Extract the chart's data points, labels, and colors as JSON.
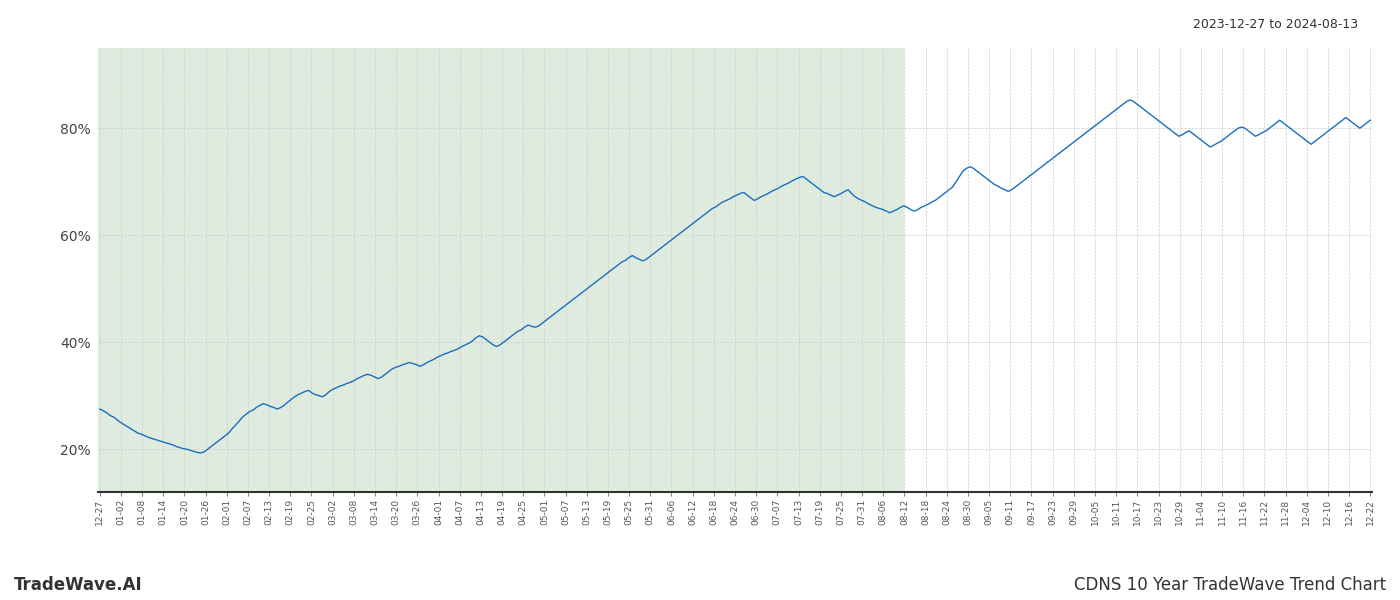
{
  "title_top_right": "2023-12-27 to 2024-08-13",
  "title_bottom_left": "TradeWave.AI",
  "title_bottom_right": "CDNS 10 Year TradeWave Trend Chart",
  "line_color": "#1a6fbd",
  "line_width": 1.0,
  "shaded_color": "#c8dfc8",
  "shaded_alpha": 0.6,
  "background_color": "#ffffff",
  "grid_color": "#cccccc",
  "ylim": [
    12,
    95
  ],
  "yticks": [
    20,
    40,
    60,
    80
  ],
  "x_labels": [
    "12-27",
    "01-02",
    "01-08",
    "01-14",
    "01-20",
    "01-26",
    "02-01",
    "02-07",
    "02-13",
    "02-19",
    "02-25",
    "03-02",
    "03-08",
    "03-14",
    "03-20",
    "03-26",
    "04-01",
    "04-07",
    "04-13",
    "04-19",
    "04-25",
    "05-01",
    "05-07",
    "05-13",
    "05-19",
    "05-25",
    "05-31",
    "06-06",
    "06-12",
    "06-18",
    "06-24",
    "06-30",
    "07-07",
    "07-13",
    "07-19",
    "07-25",
    "07-31",
    "08-06",
    "08-12",
    "08-18",
    "08-24",
    "08-30",
    "09-05",
    "09-11",
    "09-17",
    "09-23",
    "09-29",
    "10-05",
    "10-11",
    "10-17",
    "10-23",
    "10-29",
    "11-04",
    "11-10",
    "11-16",
    "11-22",
    "11-28",
    "12-04",
    "12-10",
    "12-16",
    "12-22"
  ],
  "shaded_end_label": "08-12",
  "y_values": [
    27.5,
    27.2,
    26.8,
    26.3,
    26.0,
    25.5,
    25.0,
    24.6,
    24.2,
    23.8,
    23.4,
    23.0,
    22.8,
    22.5,
    22.2,
    22.0,
    21.8,
    21.6,
    21.4,
    21.2,
    21.0,
    20.8,
    20.5,
    20.3,
    20.1,
    20.0,
    19.8,
    19.6,
    19.4,
    19.3,
    19.5,
    20.0,
    20.5,
    21.0,
    21.5,
    22.0,
    22.5,
    23.0,
    23.8,
    24.5,
    25.2,
    26.0,
    26.5,
    27.0,
    27.3,
    27.8,
    28.2,
    28.5,
    28.3,
    28.0,
    27.8,
    27.5,
    27.8,
    28.2,
    28.8,
    29.3,
    29.8,
    30.2,
    30.5,
    30.8,
    31.0,
    30.5,
    30.2,
    30.0,
    29.8,
    30.2,
    30.8,
    31.2,
    31.5,
    31.8,
    32.0,
    32.3,
    32.5,
    32.8,
    33.2,
    33.5,
    33.8,
    34.0,
    33.8,
    33.5,
    33.2,
    33.5,
    34.0,
    34.5,
    35.0,
    35.3,
    35.5,
    35.8,
    36.0,
    36.2,
    36.0,
    35.8,
    35.5,
    35.8,
    36.2,
    36.5,
    36.8,
    37.2,
    37.5,
    37.8,
    38.0,
    38.3,
    38.5,
    38.8,
    39.2,
    39.5,
    39.8,
    40.2,
    40.8,
    41.2,
    41.0,
    40.5,
    40.0,
    39.5,
    39.2,
    39.5,
    40.0,
    40.5,
    41.0,
    41.5,
    42.0,
    42.3,
    42.8,
    43.2,
    43.0,
    42.8,
    43.0,
    43.5,
    44.0,
    44.5,
    45.0,
    45.5,
    46.0,
    46.5,
    47.0,
    47.5,
    48.0,
    48.5,
    49.0,
    49.5,
    50.0,
    50.5,
    51.0,
    51.5,
    52.0,
    52.5,
    53.0,
    53.5,
    54.0,
    54.5,
    55.0,
    55.3,
    55.8,
    56.2,
    55.8,
    55.5,
    55.2,
    55.5,
    56.0,
    56.5,
    57.0,
    57.5,
    58.0,
    58.5,
    59.0,
    59.5,
    60.0,
    60.5,
    61.0,
    61.5,
    62.0,
    62.5,
    63.0,
    63.5,
    64.0,
    64.5,
    65.0,
    65.3,
    65.8,
    66.2,
    66.5,
    66.8,
    67.2,
    67.5,
    67.8,
    68.0,
    67.5,
    67.0,
    66.5,
    66.8,
    67.2,
    67.5,
    67.8,
    68.2,
    68.5,
    68.8,
    69.2,
    69.5,
    69.8,
    70.2,
    70.5,
    70.8,
    71.0,
    70.5,
    70.0,
    69.5,
    69.0,
    68.5,
    68.0,
    67.8,
    67.5,
    67.2,
    67.5,
    67.8,
    68.2,
    68.5,
    67.8,
    67.2,
    66.8,
    66.5,
    66.2,
    65.8,
    65.5,
    65.2,
    65.0,
    64.8,
    64.5,
    64.2,
    64.5,
    64.8,
    65.2,
    65.5,
    65.2,
    64.8,
    64.5,
    64.8,
    65.2,
    65.5,
    65.8,
    66.2,
    66.5,
    67.0,
    67.5,
    68.0,
    68.5,
    69.0,
    70.0,
    71.0,
    72.0,
    72.5,
    72.8,
    72.5,
    72.0,
    71.5,
    71.0,
    70.5,
    70.0,
    69.5,
    69.2,
    68.8,
    68.5,
    68.2,
    68.5,
    69.0,
    69.5,
    70.0,
    70.5,
    71.0,
    71.5,
    72.0,
    72.5,
    73.0,
    73.5,
    74.0,
    74.5,
    75.0,
    75.5,
    76.0,
    76.5,
    77.0,
    77.5,
    78.0,
    78.5,
    79.0,
    79.5,
    80.0,
    80.5,
    81.0,
    81.5,
    82.0,
    82.5,
    83.0,
    83.5,
    84.0,
    84.5,
    85.0,
    85.3,
    85.0,
    84.5,
    84.0,
    83.5,
    83.0,
    82.5,
    82.0,
    81.5,
    81.0,
    80.5,
    80.0,
    79.5,
    79.0,
    78.5,
    78.8,
    79.2,
    79.5,
    79.0,
    78.5,
    78.0,
    77.5,
    77.0,
    76.5,
    76.8,
    77.2,
    77.5,
    78.0,
    78.5,
    79.0,
    79.5,
    80.0,
    80.2,
    80.0,
    79.5,
    79.0,
    78.5,
    78.8,
    79.2,
    79.5,
    80.0,
    80.5,
    81.0,
    81.5,
    81.0,
    80.5,
    80.0,
    79.5,
    79.0,
    78.5,
    78.0,
    77.5,
    77.0,
    77.5,
    78.0,
    78.5,
    79.0,
    79.5,
    80.0,
    80.5,
    81.0,
    81.5,
    82.0,
    81.5,
    81.0,
    80.5,
    80.0,
    80.5,
    81.0,
    81.5
  ]
}
